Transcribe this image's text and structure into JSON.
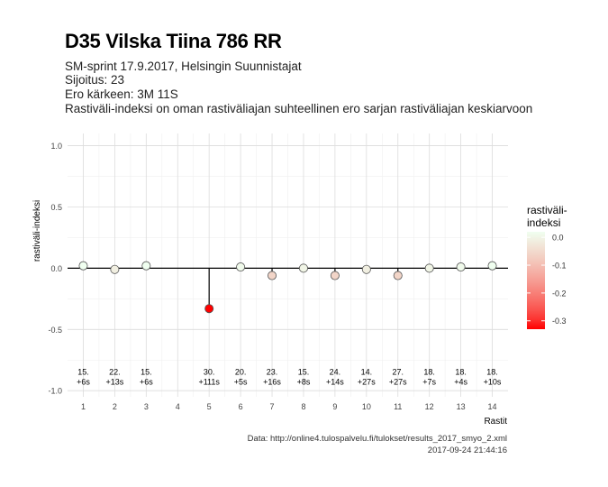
{
  "header": {
    "title": "D35 Vilska Tiina 786 RR",
    "line1": "SM-sprint 17.9.2017, Helsingin Suunnistajat",
    "line2": "Sijoitus: 23",
    "line3": "Ero kärkeen: 3M 11S",
    "line4": "Rastiväli-indeksi on oman rastiväliajan suhteellinen ero sarjan rastiväliajan keskiarvoon"
  },
  "footer": {
    "source": "Data: http://online4.tulospalvelu.fi/tulokset/results_2017_smyo_2.xml",
    "timestamp": "2017-09-24 21:44:16"
  },
  "chart_data": {
    "type": "scatter",
    "xlabel": "Rastit",
    "ylabel": "rastiväli-indeksi",
    "xlim": [
      0.5,
      14.5
    ],
    "ylim": [
      -1.05,
      1.1
    ],
    "x_ticks": [
      1,
      2,
      3,
      4,
      5,
      6,
      7,
      8,
      9,
      10,
      11,
      12,
      13,
      14
    ],
    "y_ticks": [
      -1.0,
      -0.5,
      0.0,
      0.5,
      1.0
    ],
    "y_tick_labels": [
      "-1.0",
      "-0.5",
      "0.0",
      "0.5",
      "1.0"
    ],
    "grid": true,
    "points": [
      {
        "x": 1,
        "y": 0.02,
        "rank": "15.",
        "diff": "+6s"
      },
      {
        "x": 2,
        "y": -0.01,
        "rank": "22.",
        "diff": "+13s"
      },
      {
        "x": 3,
        "y": 0.02,
        "rank": "15.",
        "diff": "+6s"
      },
      {
        "x": 5,
        "y": -0.33,
        "rank": "30.",
        "diff": "+111s"
      },
      {
        "x": 6,
        "y": 0.01,
        "rank": "20.",
        "diff": "+5s"
      },
      {
        "x": 7,
        "y": -0.06,
        "rank": "23.",
        "diff": "+16s"
      },
      {
        "x": 8,
        "y": 0.0,
        "rank": "15.",
        "diff": "+8s"
      },
      {
        "x": 9,
        "y": -0.06,
        "rank": "24.",
        "diff": "+14s"
      },
      {
        "x": 10,
        "y": -0.01,
        "rank": "14.",
        "diff": "+27s"
      },
      {
        "x": 11,
        "y": -0.06,
        "rank": "27.",
        "diff": "+27s"
      },
      {
        "x": 12,
        "y": 0.0,
        "rank": "18.",
        "diff": "+7s"
      },
      {
        "x": 13,
        "y": 0.01,
        "rank": "18.",
        "diff": "+4s"
      },
      {
        "x": 14,
        "y": 0.02,
        "rank": "18.",
        "diff": "+10s"
      }
    ],
    "legend": {
      "title_line1": "rastiväli-",
      "title_line2": "indeksi",
      "ticks": [
        0.0,
        -0.1,
        -0.2,
        -0.3
      ],
      "tick_labels": [
        "0.0",
        "-0.1",
        "-0.2",
        "-0.3"
      ],
      "range": [
        -0.33,
        0.02
      ],
      "color_low": "#ff0000",
      "color_high": "#f0fff0",
      "placement": "right"
    },
    "colors": {
      "point_outline": "#555555",
      "zero_line": "#000000",
      "grid": "#dcdcdc"
    }
  }
}
